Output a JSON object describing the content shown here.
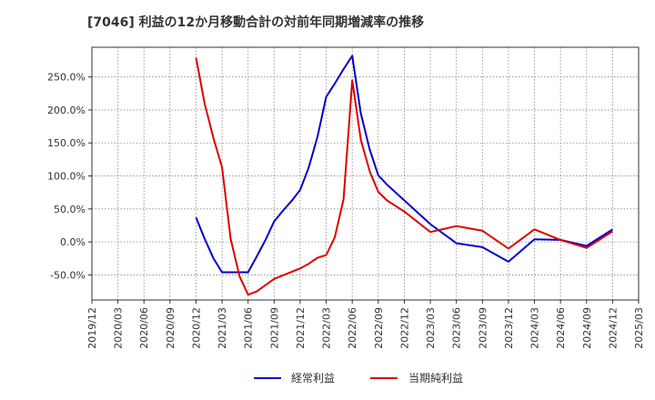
{
  "chart_data": {
    "type": "line",
    "title": "[7046]  利益の12か月移動合計の対前年同期増減率の推移",
    "xlabel": "",
    "ylabel": "",
    "ylim": [
      -88,
      295
    ],
    "yticks": [
      250,
      200,
      150,
      100,
      50,
      0,
      -50
    ],
    "ytick_labels": [
      "250.0%",
      "200.0%",
      "150.0%",
      "100.0%",
      "50.0%",
      "0.0%",
      "-50.0%"
    ],
    "x_categories": [
      "2019/12",
      "2020/03",
      "2020/06",
      "2020/09",
      "2020/12",
      "2021/03",
      "2021/06",
      "2021/09",
      "2021/12",
      "2022/03",
      "2022/06",
      "2022/09",
      "2022/12",
      "2023/03",
      "2023/06",
      "2023/09",
      "2023/12",
      "2024/03",
      "2024/06",
      "2024/09",
      "2024/12",
      "2025/03"
    ],
    "grid": true,
    "legend_position": "bottom-center",
    "series": [
      {
        "name": "経常利益",
        "color": "#0000cc",
        "points": [
          [
            4,
            37
          ],
          [
            4.33,
            5
          ],
          [
            4.67,
            -25
          ],
          [
            5,
            -46
          ],
          [
            6,
            -46
          ],
          [
            6.33,
            -22
          ],
          [
            6.67,
            3
          ],
          [
            7,
            31
          ],
          [
            7.33,
            47
          ],
          [
            7.67,
            62
          ],
          [
            8,
            79
          ],
          [
            8.33,
            113
          ],
          [
            8.67,
            160
          ],
          [
            9,
            220
          ],
          [
            9.33,
            240
          ],
          [
            9.67,
            262
          ],
          [
            10,
            282
          ],
          [
            10.33,
            195
          ],
          [
            10.67,
            140
          ],
          [
            11,
            101
          ],
          [
            11.33,
            87
          ],
          [
            12,
            63
          ],
          [
            13,
            27
          ],
          [
            14,
            -2
          ],
          [
            15,
            -8
          ],
          [
            16,
            -30
          ],
          [
            17,
            4
          ],
          [
            18,
            3
          ],
          [
            19,
            -6
          ],
          [
            20,
            19
          ]
        ]
      },
      {
        "name": "当期純利益",
        "color": "#dd0000",
        "points": [
          [
            4,
            279
          ],
          [
            4.33,
            210
          ],
          [
            4.67,
            157
          ],
          [
            5,
            113
          ],
          [
            5.33,
            5
          ],
          [
            5.67,
            -52
          ],
          [
            6,
            -80
          ],
          [
            6.33,
            -75
          ],
          [
            7,
            -56
          ],
          [
            8,
            -40
          ],
          [
            8.33,
            -33
          ],
          [
            8.67,
            -24
          ],
          [
            9,
            -20
          ],
          [
            9.33,
            7
          ],
          [
            9.67,
            65
          ],
          [
            10,
            245
          ],
          [
            10.33,
            155
          ],
          [
            10.67,
            107
          ],
          [
            11,
            76
          ],
          [
            11.33,
            63
          ],
          [
            12,
            46
          ],
          [
            13,
            15
          ],
          [
            14,
            24
          ],
          [
            15,
            17
          ],
          [
            16,
            -10
          ],
          [
            17,
            19
          ],
          [
            18,
            3
          ],
          [
            19,
            -9
          ],
          [
            20,
            16
          ]
        ]
      }
    ]
  }
}
